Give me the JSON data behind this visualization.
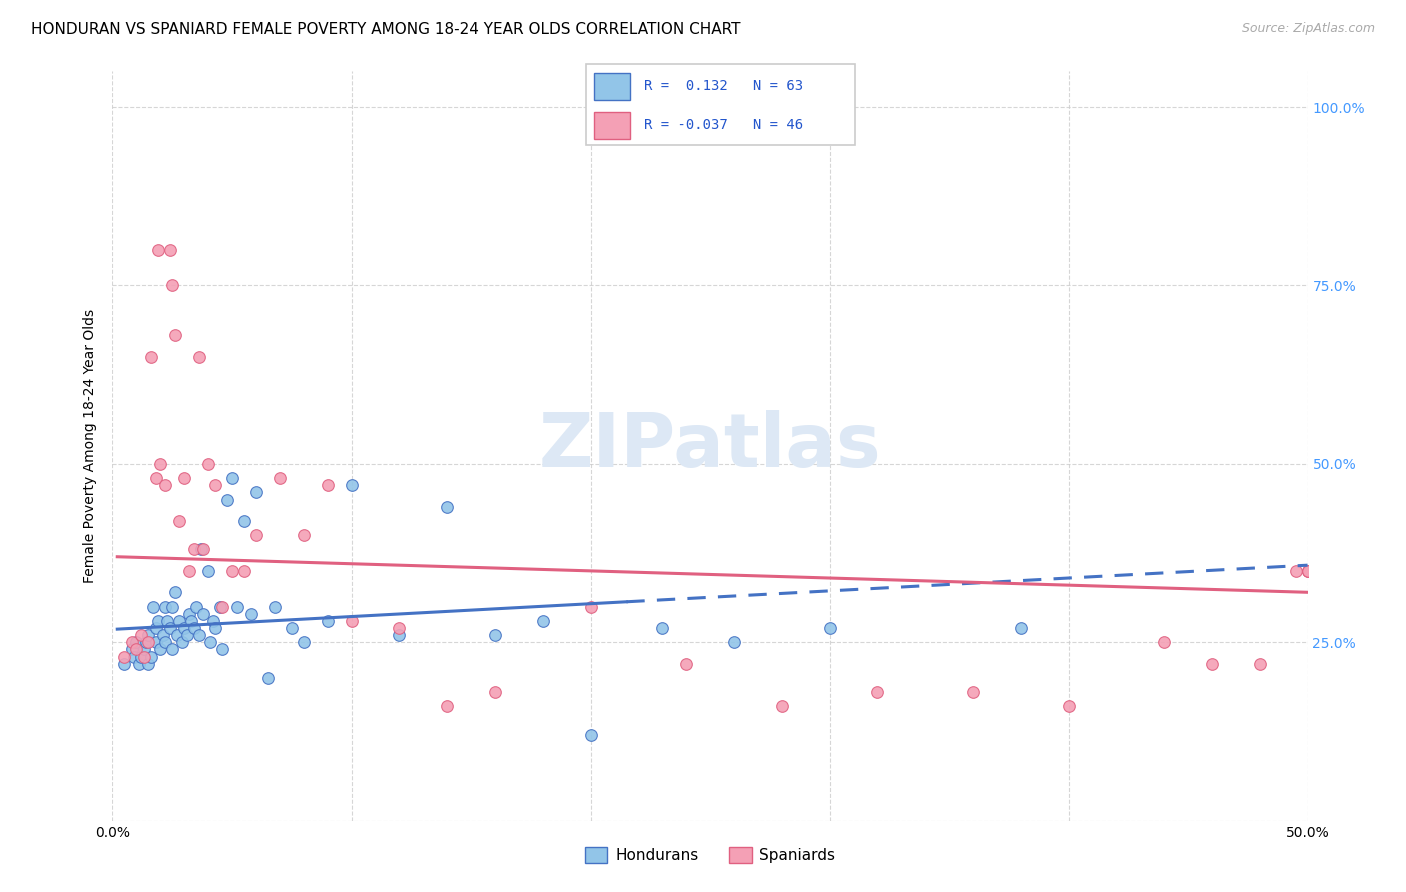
{
  "title": "HONDURAN VS SPANIARD FEMALE POVERTY AMONG 18-24 YEAR OLDS CORRELATION CHART",
  "source": "Source: ZipAtlas.com",
  "ylabel": "Female Poverty Among 18-24 Year Olds",
  "ytick_labels": [
    "",
    "25.0%",
    "50.0%",
    "75.0%",
    "100.0%"
  ],
  "ytick_values": [
    0.0,
    0.25,
    0.5,
    0.75,
    1.0
  ],
  "xlim": [
    0.0,
    0.5
  ],
  "ylim": [
    0.0,
    1.05
  ],
  "color_honduran": "#92c5e8",
  "color_spaniard": "#f4a0b5",
  "color_line_honduran": "#4472c4",
  "color_line_spaniard": "#e06080",
  "color_legend_text": "#2255cc",
  "watermark_color": "#dde8f5",
  "background_color": "#ffffff",
  "honduran_x": [
    0.005,
    0.008,
    0.009,
    0.01,
    0.011,
    0.012,
    0.013,
    0.014,
    0.015,
    0.015,
    0.016,
    0.017,
    0.018,
    0.018,
    0.019,
    0.02,
    0.021,
    0.022,
    0.022,
    0.023,
    0.024,
    0.025,
    0.025,
    0.026,
    0.027,
    0.028,
    0.029,
    0.03,
    0.031,
    0.032,
    0.033,
    0.034,
    0.035,
    0.036,
    0.037,
    0.038,
    0.04,
    0.041,
    0.042,
    0.043,
    0.045,
    0.046,
    0.048,
    0.05,
    0.052,
    0.055,
    0.058,
    0.06,
    0.065,
    0.068,
    0.075,
    0.08,
    0.09,
    0.1,
    0.12,
    0.14,
    0.16,
    0.18,
    0.2,
    0.23,
    0.26,
    0.3,
    0.38
  ],
  "honduran_y": [
    0.22,
    0.24,
    0.23,
    0.25,
    0.22,
    0.23,
    0.24,
    0.25,
    0.22,
    0.26,
    0.23,
    0.3,
    0.27,
    0.25,
    0.28,
    0.24,
    0.26,
    0.25,
    0.3,
    0.28,
    0.27,
    0.3,
    0.24,
    0.32,
    0.26,
    0.28,
    0.25,
    0.27,
    0.26,
    0.29,
    0.28,
    0.27,
    0.3,
    0.26,
    0.38,
    0.29,
    0.35,
    0.25,
    0.28,
    0.27,
    0.3,
    0.24,
    0.45,
    0.48,
    0.3,
    0.42,
    0.29,
    0.46,
    0.2,
    0.3,
    0.27,
    0.25,
    0.28,
    0.47,
    0.26,
    0.44,
    0.26,
    0.28,
    0.12,
    0.27,
    0.25,
    0.27,
    0.27
  ],
  "spaniard_x": [
    0.005,
    0.008,
    0.01,
    0.012,
    0.013,
    0.015,
    0.016,
    0.018,
    0.019,
    0.02,
    0.022,
    0.024,
    0.025,
    0.026,
    0.028,
    0.03,
    0.032,
    0.034,
    0.036,
    0.038,
    0.04,
    0.043,
    0.046,
    0.05,
    0.055,
    0.06,
    0.07,
    0.08,
    0.09,
    0.1,
    0.12,
    0.14,
    0.16,
    0.2,
    0.24,
    0.28,
    0.32,
    0.36,
    0.4,
    0.44,
    0.46,
    0.48,
    0.495,
    0.5,
    0.5,
    0.5
  ],
  "spaniard_y": [
    0.23,
    0.25,
    0.24,
    0.26,
    0.23,
    0.25,
    0.65,
    0.48,
    0.8,
    0.5,
    0.47,
    0.8,
    0.75,
    0.68,
    0.42,
    0.48,
    0.35,
    0.38,
    0.65,
    0.38,
    0.5,
    0.47,
    0.3,
    0.35,
    0.35,
    0.4,
    0.48,
    0.4,
    0.47,
    0.28,
    0.27,
    0.16,
    0.18,
    0.3,
    0.22,
    0.16,
    0.18,
    0.18,
    0.16,
    0.25,
    0.22,
    0.22,
    0.35,
    0.35,
    0.35,
    0.35
  ],
  "hon_trend_start_x": 0.002,
  "hon_trend_end_solid_x": 0.215,
  "hon_trend_end_x": 0.5,
  "spa_trend_start_x": 0.002,
  "spa_trend_end_x": 0.5
}
